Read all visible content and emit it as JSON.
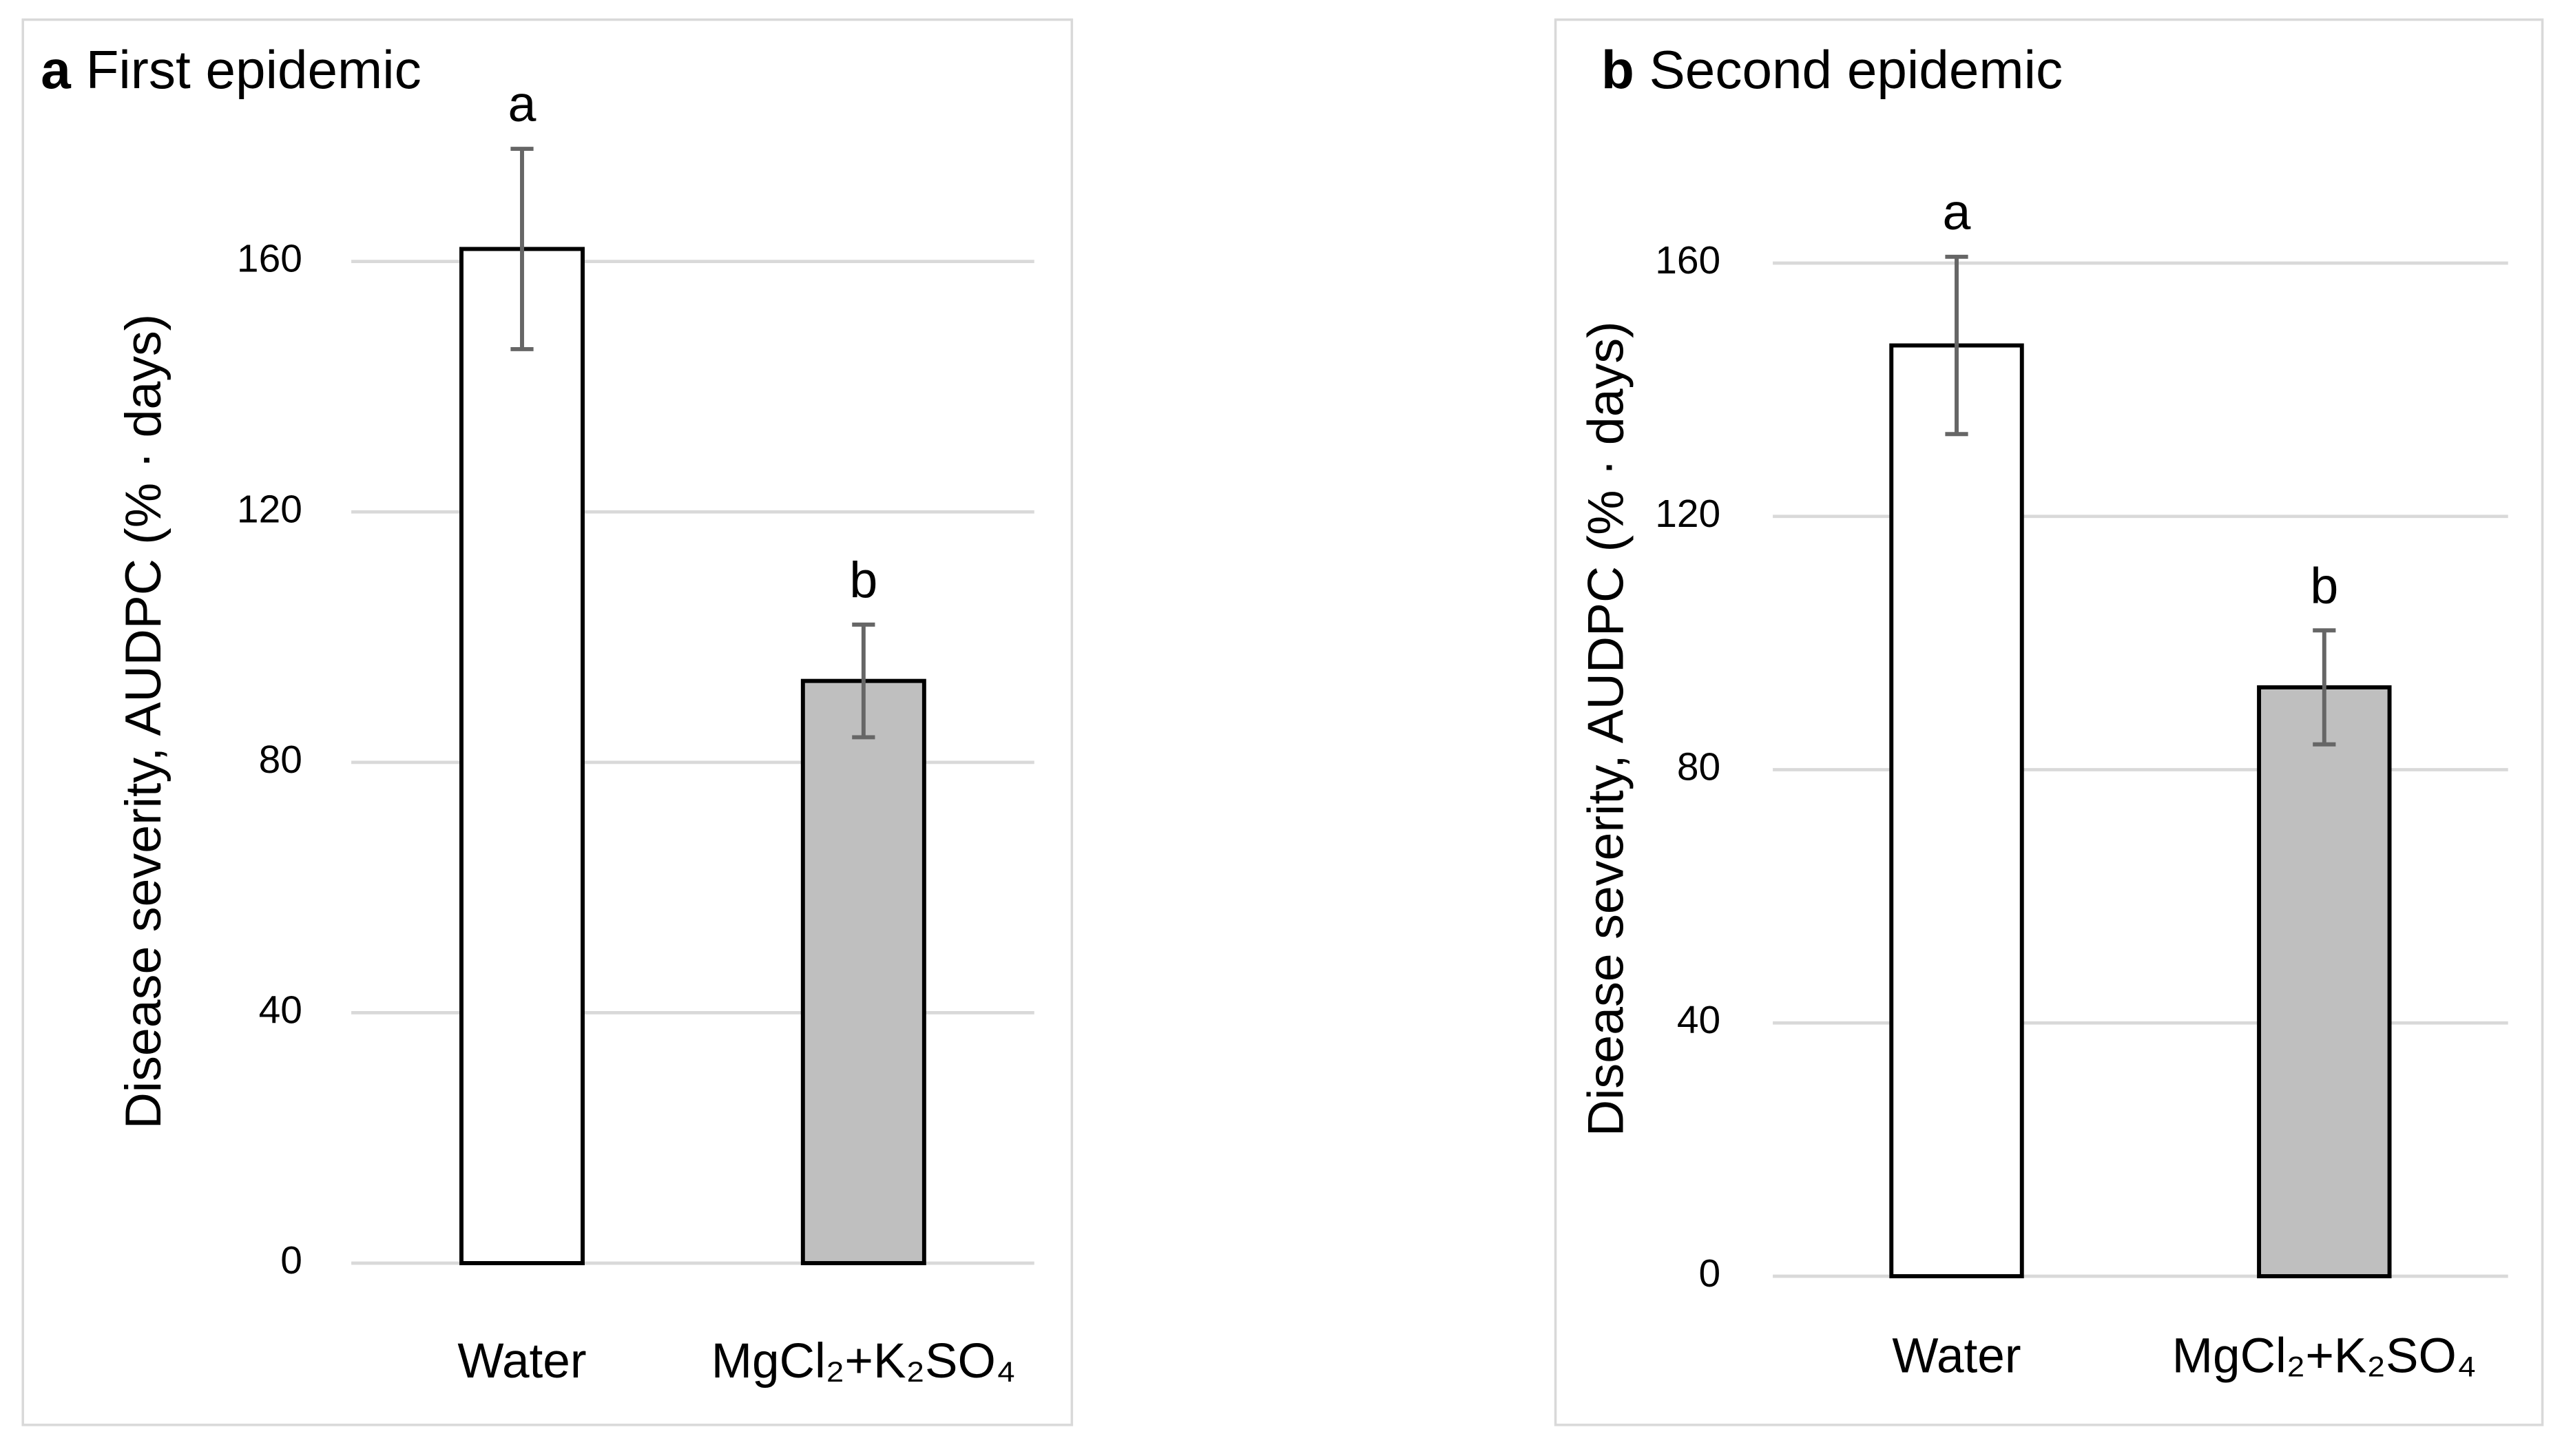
{
  "chart_data": [
    {
      "type": "bar",
      "label": "a",
      "title": "First epidemic",
      "y_label": "Disease severity, AUDPC (% · days)",
      "categories": [
        "Water",
        "MgCl₂+K₂SO₄"
      ],
      "values": [
        162,
        93
      ],
      "errors": [
        16,
        9
      ],
      "annotations": [
        "a",
        "b"
      ],
      "colors": [
        "#ffffff",
        "#bfbfbf"
      ],
      "ylim": [
        0,
        160
      ],
      "yticks": [
        0,
        40,
        80,
        120,
        160
      ],
      "grid": true
    },
    {
      "type": "bar",
      "label": "b",
      "title": "Second epidemic",
      "y_label": "Disease severity, AUDPC (% · days)",
      "categories": [
        "Water",
        "MgCl₂+K₂SO₄"
      ],
      "values": [
        147,
        93
      ],
      "errors": [
        14,
        9
      ],
      "annotations": [
        "a",
        "b"
      ],
      "colors": [
        "#ffffff",
        "#bfbfbf"
      ],
      "ylim": [
        0,
        160
      ],
      "yticks": [
        0,
        40,
        80,
        120,
        160
      ],
      "grid": true
    }
  ]
}
